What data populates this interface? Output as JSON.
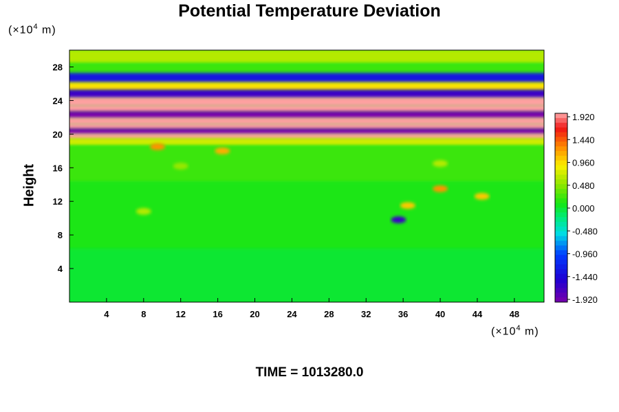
{
  "chart_data": {
    "type": "heatmap",
    "title": "Potential Temperature Deviation",
    "ylabel": "Height",
    "xlabel": "",
    "x_unit": {
      "prefix": "(×10",
      "exponent": "4",
      "suffix": " m)"
    },
    "y_unit": {
      "prefix": "(×10",
      "exponent": "4",
      "suffix": " m)"
    },
    "xlim": [
      0,
      51.2
    ],
    "ylim": [
      0,
      30
    ],
    "xticks": [
      4,
      8,
      12,
      16,
      20,
      24,
      28,
      32,
      36,
      40,
      44,
      48
    ],
    "yticks": [
      4,
      8,
      12,
      16,
      20,
      24,
      28
    ],
    "colorbar": {
      "min": -1.92,
      "max": 1.92,
      "labels": [
        "1.920",
        "1.440",
        "0.960",
        "0.480",
        "0.000",
        "-0.480",
        "-0.960",
        "-1.440",
        "-1.920"
      ]
    },
    "field_bands": [
      {
        "y": 29.0,
        "value": 0.6
      },
      {
        "y": 27.8,
        "value": 0.2
      },
      {
        "y": 26.6,
        "value": -1.3
      },
      {
        "y": 25.6,
        "value": 0.9
      },
      {
        "y": 24.8,
        "value": -1.6
      },
      {
        "y": 23.8,
        "value": 1.9
      },
      {
        "y": 23.0,
        "value": 1.9
      },
      {
        "y": 22.3,
        "value": -1.9
      },
      {
        "y": 21.5,
        "value": 1.9
      },
      {
        "y": 20.9,
        "value": 1.9
      },
      {
        "y": 20.3,
        "value": -1.9
      },
      {
        "y": 19.7,
        "value": 1.9
      },
      {
        "y": 19.2,
        "value": 0.7
      },
      {
        "y": 18.0,
        "value": 0.2
      },
      {
        "y": 10.5,
        "value": 0.1
      },
      {
        "y": 2.0,
        "value": 0.0
      }
    ],
    "features": [
      {
        "x": 9.5,
        "y": 18.5,
        "value": 1.2
      },
      {
        "x": 16.5,
        "y": 18.0,
        "value": 1.1
      },
      {
        "x": 40.0,
        "y": 13.5,
        "value": 1.2
      },
      {
        "x": 44.5,
        "y": 12.6,
        "value": 1.0
      },
      {
        "x": 36.5,
        "y": 11.5,
        "value": 1.0
      },
      {
        "x": 35.5,
        "y": 9.8,
        "value": -1.6
      },
      {
        "x": 8.0,
        "y": 10.8,
        "value": 0.6
      },
      {
        "x": 40.0,
        "y": 16.5,
        "value": 0.6
      },
      {
        "x": 12.0,
        "y": 16.2,
        "value": 0.5
      }
    ]
  },
  "time_label": "TIME = 1013280.0"
}
